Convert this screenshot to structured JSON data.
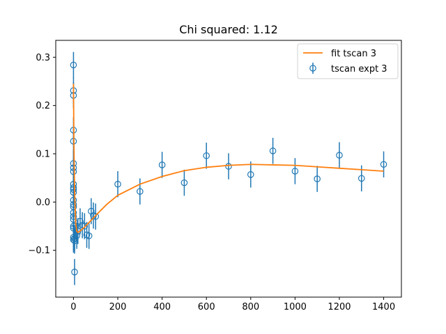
{
  "chart_data": {
    "type": "scatter",
    "title": "Chi squared: 1.12",
    "xlabel": "",
    "ylabel": "",
    "xlim": [
      -80,
      1480
    ],
    "ylim": [
      -0.197,
      0.335
    ],
    "xticks": [
      0,
      200,
      400,
      600,
      800,
      1000,
      1200,
      1400
    ],
    "yticks": [
      -0.1,
      0.0,
      0.1,
      0.2,
      0.3
    ],
    "xtick_labels": [
      "0",
      "200",
      "400",
      "600",
      "800",
      "1000",
      "1200",
      "1400"
    ],
    "ytick_labels": [
      "−0.1",
      "0.0",
      "0.1",
      "0.2",
      "0.3"
    ],
    "legend_position": "top-right",
    "grid": false,
    "colors": {
      "data": "#1f77b4",
      "fit": "#ff7f0e"
    },
    "series": [
      {
        "name": "tscan expt 3",
        "kind": "errorbar",
        "points": [
          {
            "x": 0,
            "y": 0.284,
            "err": 0.027
          },
          {
            "x": 0,
            "y": 0.231,
            "err": 0.027
          },
          {
            "x": 0,
            "y": 0.221,
            "err": 0.027
          },
          {
            "x": 0,
            "y": 0.149,
            "err": 0.027
          },
          {
            "x": 0,
            "y": 0.126,
            "err": 0.027
          },
          {
            "x": 0,
            "y": 0.08,
            "err": 0.027
          },
          {
            "x": 0,
            "y": 0.071,
            "err": 0.027
          },
          {
            "x": 0,
            "y": 0.063,
            "err": 0.027
          },
          {
            "x": 0,
            "y": 0.037,
            "err": 0.027
          },
          {
            "x": 0,
            "y": 0.03,
            "err": 0.027
          },
          {
            "x": 0,
            "y": 0.026,
            "err": 0.027
          },
          {
            "x": 0,
            "y": 0.02,
            "err": 0.027
          },
          {
            "x": 0,
            "y": 0.004,
            "err": 0.027
          },
          {
            "x": 0,
            "y": -0.005,
            "err": 0.027
          },
          {
            "x": 0,
            "y": -0.01,
            "err": 0.027
          },
          {
            "x": 0,
            "y": -0.022,
            "err": 0.027
          },
          {
            "x": 0,
            "y": -0.03,
            "err": 0.027
          },
          {
            "x": 0,
            "y": -0.036,
            "err": 0.027
          },
          {
            "x": 0,
            "y": -0.05,
            "err": 0.027
          },
          {
            "x": 0,
            "y": -0.054,
            "err": 0.027
          },
          {
            "x": 0,
            "y": -0.073,
            "err": 0.027
          },
          {
            "x": 0,
            "y": -0.078,
            "err": 0.027
          },
          {
            "x": 5,
            "y": -0.08,
            "err": 0.027
          },
          {
            "x": 5,
            "y": -0.075,
            "err": 0.027
          },
          {
            "x": 5,
            "y": -0.145,
            "err": 0.027
          },
          {
            "x": 10,
            "y": -0.05,
            "err": 0.027
          },
          {
            "x": 15,
            "y": -0.07,
            "err": 0.027
          },
          {
            "x": 20,
            "y": -0.06,
            "err": 0.027
          },
          {
            "x": 30,
            "y": -0.04,
            "err": 0.027
          },
          {
            "x": 40,
            "y": -0.048,
            "err": 0.027
          },
          {
            "x": 50,
            "y": -0.05,
            "err": 0.027
          },
          {
            "x": 60,
            "y": -0.068,
            "err": 0.027
          },
          {
            "x": 70,
            "y": -0.07,
            "err": 0.027
          },
          {
            "x": 80,
            "y": -0.019,
            "err": 0.027
          },
          {
            "x": 90,
            "y": -0.028,
            "err": 0.027
          },
          {
            "x": 100,
            "y": -0.03,
            "err": 0.027
          },
          {
            "x": 200,
            "y": 0.037,
            "err": 0.027
          },
          {
            "x": 300,
            "y": 0.022,
            "err": 0.027
          },
          {
            "x": 400,
            "y": 0.077,
            "err": 0.027
          },
          {
            "x": 500,
            "y": 0.04,
            "err": 0.027
          },
          {
            "x": 600,
            "y": 0.096,
            "err": 0.027
          },
          {
            "x": 700,
            "y": 0.074,
            "err": 0.027
          },
          {
            "x": 800,
            "y": 0.057,
            "err": 0.027
          },
          {
            "x": 900,
            "y": 0.106,
            "err": 0.027
          },
          {
            "x": 1000,
            "y": 0.064,
            "err": 0.027
          },
          {
            "x": 1100,
            "y": 0.048,
            "err": 0.027
          },
          {
            "x": 1200,
            "y": 0.097,
            "err": 0.027
          },
          {
            "x": 1300,
            "y": 0.049,
            "err": 0.027
          },
          {
            "x": 1400,
            "y": 0.078,
            "err": 0.027
          }
        ]
      },
      {
        "name": "fit tscan 3",
        "kind": "line",
        "points": [
          {
            "x": 0,
            "y": 0.245
          },
          {
            "x": 2,
            "y": 0.12
          },
          {
            "x": 5,
            "y": 0.02
          },
          {
            "x": 10,
            "y": -0.045
          },
          {
            "x": 15,
            "y": -0.06
          },
          {
            "x": 20,
            "y": -0.063
          },
          {
            "x": 30,
            "y": -0.06
          },
          {
            "x": 40,
            "y": -0.056
          },
          {
            "x": 50,
            "y": -0.052
          },
          {
            "x": 75,
            "y": -0.04
          },
          {
            "x": 100,
            "y": -0.028
          },
          {
            "x": 150,
            "y": -0.005
          },
          {
            "x": 200,
            "y": 0.014
          },
          {
            "x": 300,
            "y": 0.037
          },
          {
            "x": 400,
            "y": 0.053
          },
          {
            "x": 500,
            "y": 0.065
          },
          {
            "x": 600,
            "y": 0.072
          },
          {
            "x": 700,
            "y": 0.076
          },
          {
            "x": 800,
            "y": 0.078
          },
          {
            "x": 900,
            "y": 0.077
          },
          {
            "x": 1000,
            "y": 0.076
          },
          {
            "x": 1100,
            "y": 0.073
          },
          {
            "x": 1200,
            "y": 0.07
          },
          {
            "x": 1300,
            "y": 0.067
          },
          {
            "x": 1400,
            "y": 0.064
          }
        ]
      }
    ]
  }
}
